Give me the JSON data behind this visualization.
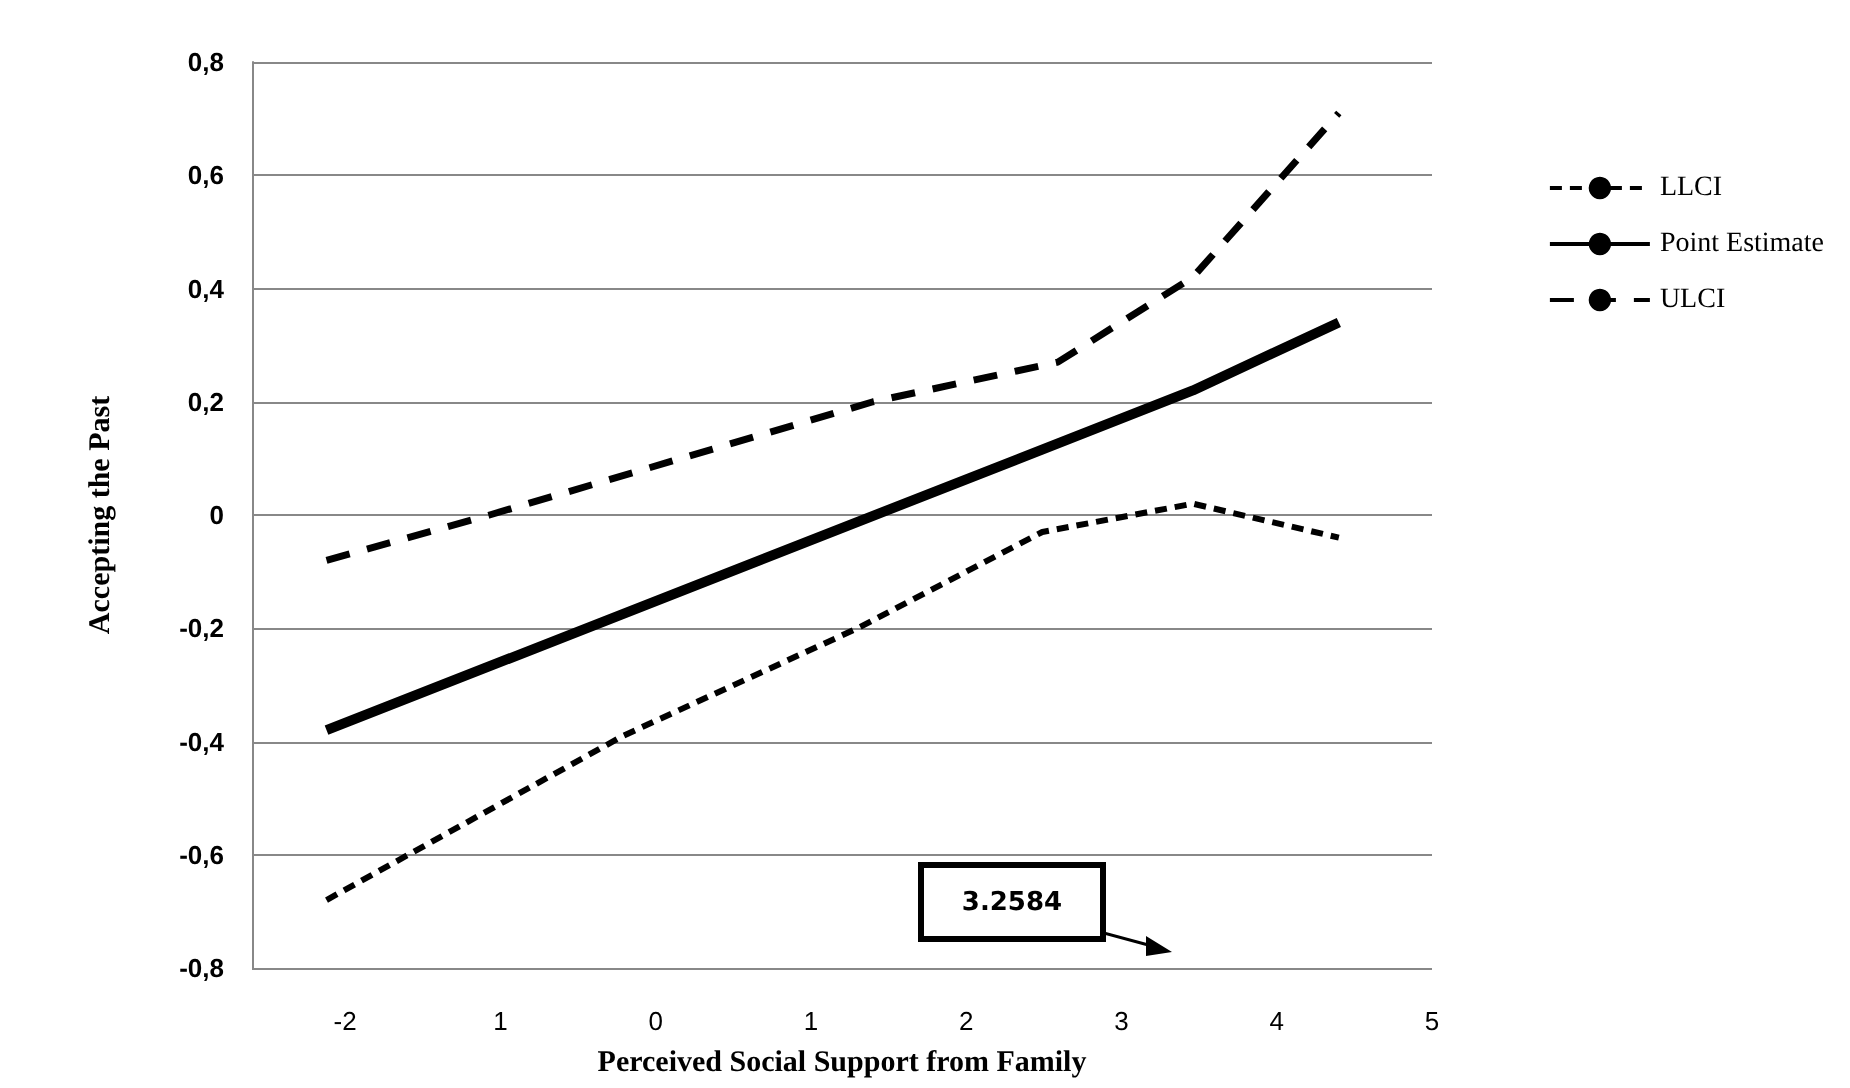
{
  "chart_data": {
    "type": "line",
    "xlabel": "Perceived Social Support from Family",
    "ylabel": "Accepting the Past",
    "xlim": [
      -2.6,
      5
    ],
    "xticks": [
      -2,
      {
        "value": -1,
        "label": "1"
      },
      0,
      1,
      2,
      3,
      4,
      5
    ],
    "ylim": [
      -0.8,
      0.8
    ],
    "yticks": [
      {
        "value": -0.8,
        "label": "-0,8"
      },
      {
        "value": -0.6,
        "label": "-0,6"
      },
      {
        "value": -0.4,
        "label": "-0,4"
      },
      {
        "value": -0.2,
        "label": "-0,2"
      },
      0,
      {
        "value": 0.2,
        "label": "0,2"
      },
      {
        "value": 0.4,
        "label": "0,4"
      },
      {
        "value": 0.6,
        "label": "0,6"
      },
      {
        "value": 0.8,
        "label": "0,8"
      }
    ],
    "grid": "y",
    "legend": "right",
    "marker": "none",
    "series": [
      {
        "name": "LLCI",
        "color": "#000000",
        "line_style": "dotted",
        "x": [
          -2.12,
          -0.21,
          1.3,
          2.49,
          3.46,
          4.4
        ],
        "values": [
          -0.68,
          -0.39,
          -0.2,
          -0.03,
          0.02,
          -0.04
        ]
      },
      {
        "name": "Point Estimate",
        "color": "#000000",
        "line_style": "solid",
        "x": [
          -2.12,
          3.46,
          4.4
        ],
        "values": [
          -0.38,
          0.22,
          0.34
        ]
      },
      {
        "name": "ULCI",
        "color": "#000000",
        "line_style": "dashed",
        "x": [
          -2.12,
          -1.07,
          1.4,
          2.59,
          3.46,
          4.4
        ],
        "values": [
          -0.08,
          0,
          0.2,
          0.27,
          0.42,
          0.71
        ]
      }
    ],
    "annotations": [
      "3.2584"
    ]
  }
}
